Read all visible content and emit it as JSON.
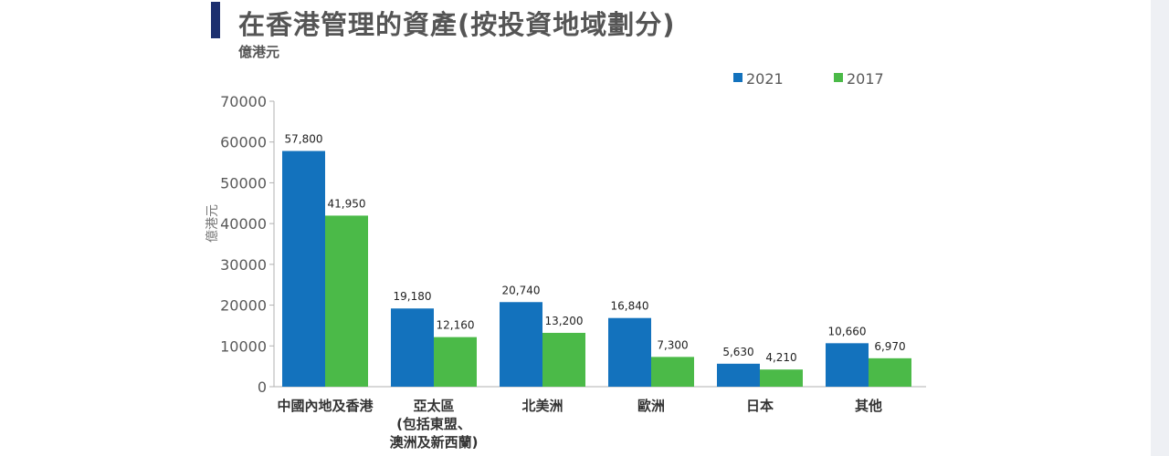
{
  "title": "在香港管理的資產(按投資地域劃分)",
  "unit_label": "億港元",
  "chart_data": {
    "type": "bar",
    "categories": [
      [
        "中國內地及香港"
      ],
      [
        "亞太區",
        "(包括東盟、",
        "澳洲及新西蘭)"
      ],
      [
        "北美洲"
      ],
      [
        "歐洲"
      ],
      [
        "日本"
      ],
      [
        "其他"
      ]
    ],
    "series": [
      {
        "name": "2021",
        "color": "#1372bd",
        "values": [
          57800,
          19180,
          20740,
          16840,
          5630,
          10660
        ],
        "labels": [
          "57,800",
          "19,180",
          "20,740",
          "16,840",
          "5,630",
          "10,660"
        ]
      },
      {
        "name": "2017",
        "color": "#4bba48",
        "values": [
          41950,
          12160,
          13200,
          7300,
          4210,
          6970
        ],
        "labels": [
          "41,950",
          "12,160",
          "13,200",
          "7,300",
          "4,210",
          "6,970"
        ]
      }
    ],
    "ylabel": "億港元",
    "ylim": [
      0,
      70000
    ],
    "yticks": [
      0,
      10000,
      20000,
      30000,
      40000,
      50000,
      60000,
      70000
    ],
    "ytick_labels": [
      "0",
      "10000",
      "20000",
      "30000",
      "40000",
      "50000",
      "60000",
      "70000"
    ],
    "legend": "top-right",
    "grid": false
  }
}
